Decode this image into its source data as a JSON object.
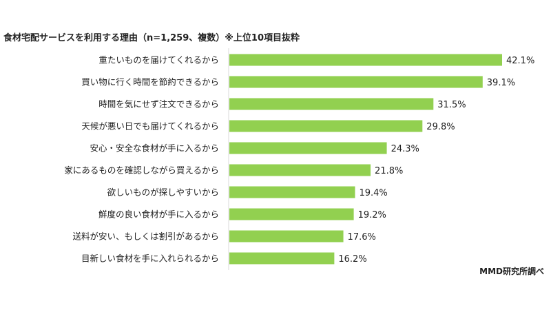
{
  "chart_data": {
    "type": "bar",
    "orientation": "horizontal",
    "title": "食材宅配サービスを利用する理由（n=1,259、複数）※上位10項目抜粋",
    "source": "MMD研究所調べ",
    "categories": [
      "重たいものを届けてくれるから",
      "買い物に行く時間を節約できるから",
      "時間を気にせず注文できるから",
      "天候が悪い日でも届けてくれるから",
      "安心・安全な食材が手に入るから",
      "家にあるものを確認しながら買えるから",
      "欲しいものが探しやすいから",
      "鮮度の良い食材が手に入るから",
      "送料が安い、もしくは割引があるから",
      "目新しい食材を手に入れられるから"
    ],
    "values": [
      42.1,
      39.1,
      31.5,
      29.8,
      24.3,
      21.8,
      19.4,
      19.2,
      17.6,
      16.2
    ],
    "value_labels": [
      "42.1%",
      "39.1%",
      "31.5%",
      "29.8%",
      "24.3%",
      "21.8%",
      "19.4%",
      "19.2%",
      "17.6%",
      "16.2%"
    ],
    "unit": "%",
    "grid": false,
    "legend": "none",
    "bar_color": "#92d050",
    "axis_color": "#d9d9d9"
  }
}
